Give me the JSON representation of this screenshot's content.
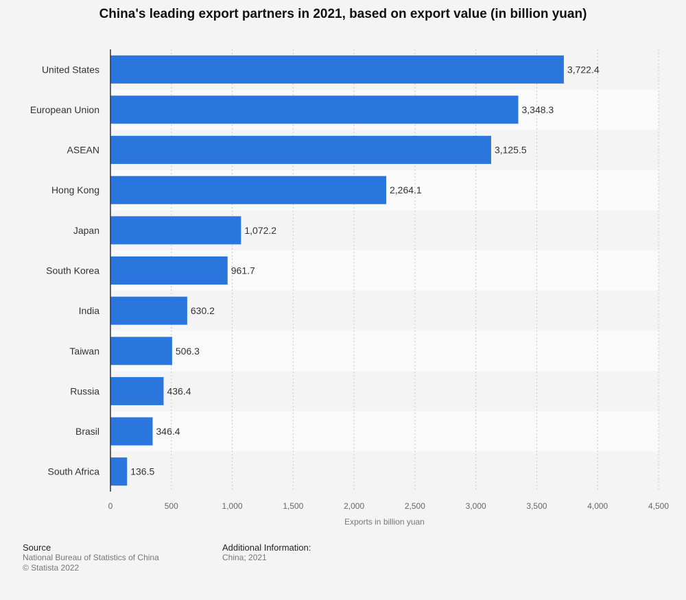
{
  "chart_data": {
    "type": "bar",
    "orientation": "horizontal",
    "title": "China's leading export partners in 2021, based on export value (in billion yuan)",
    "xlabel": "Exports in billion yuan",
    "ylabel": "",
    "categories": [
      "United States",
      "European Union",
      "ASEAN",
      "Hong Kong",
      "Japan",
      "South Korea",
      "India",
      "Taiwan",
      "Russia",
      "Brasil",
      "South Africa"
    ],
    "values": [
      3722.4,
      3348.3,
      3125.5,
      2264.1,
      1072.2,
      961.7,
      630.2,
      506.3,
      436.4,
      346.4,
      136.5
    ],
    "value_labels": [
      "3,722.4",
      "3,348.3",
      "3,125.5",
      "2,264.1",
      "1,072.2",
      "961.7",
      "630.2",
      "506.3",
      "436.4",
      "346.4",
      "136.5"
    ],
    "xlim": [
      0,
      4500
    ],
    "xticks": [
      0,
      500,
      1000,
      1500,
      2000,
      2500,
      3000,
      3500,
      4000,
      4500
    ],
    "xtick_labels": [
      "0",
      "500",
      "1,000",
      "1,500",
      "2,000",
      "2,500",
      "3,000",
      "3,500",
      "4,000",
      "4,500"
    ],
    "grid": true,
    "legend": "none",
    "bar_color": "#2a76dd"
  },
  "footer": {
    "source_heading": "Source",
    "source_line1": "National Bureau of Statistics of China",
    "source_line2": "© Statista 2022",
    "info_heading": "Additional Information:",
    "info_line1": "China; 2021"
  }
}
